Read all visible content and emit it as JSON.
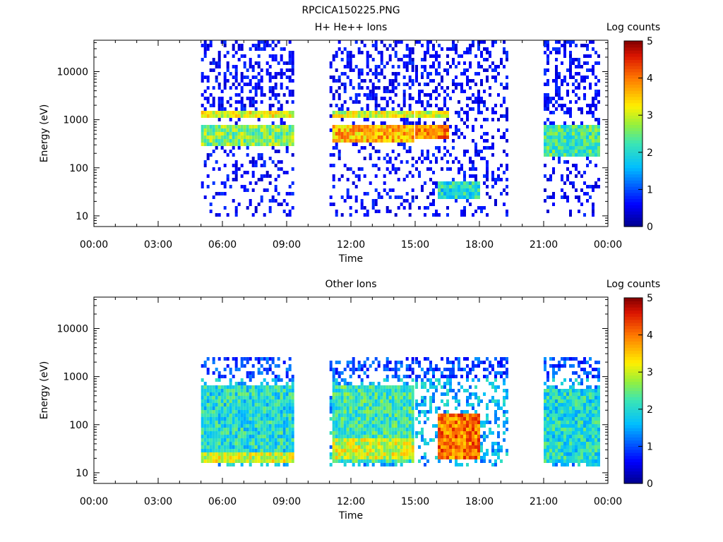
{
  "file_title": "RPCICA150225.PNG",
  "chart_data": [
    {
      "type": "heatmap",
      "title": "H+ He++ Ions",
      "xlabel": "Time",
      "ylabel": "Energy (eV)",
      "x_ticks": [
        "00:00",
        "03:00",
        "06:00",
        "09:00",
        "12:00",
        "15:00",
        "18:00",
        "21:00",
        "00:00"
      ],
      "xlim_hours": [
        0,
        24
      ],
      "y_scale": "log",
      "y_ticks": [
        "10",
        "100",
        "1000",
        "10000"
      ],
      "ylim": [
        6,
        45000
      ],
      "colorbar": {
        "label": "Log counts",
        "ticks": [
          "0",
          "1",
          "2",
          "3",
          "4",
          "5"
        ],
        "range": [
          0,
          5
        ],
        "colormap": "rainbow"
      },
      "data_intervals_hours": [
        [
          5.0,
          9.3
        ],
        [
          11.0,
          14.9
        ],
        [
          15.0,
          19.3
        ],
        [
          21.0,
          23.6
        ]
      ],
      "bands": [
        {
          "t_start": 5.0,
          "t_end": 9.3,
          "energy_low": 1100,
          "energy_high": 1600,
          "log_counts": 3.2
        },
        {
          "t_start": 5.0,
          "t_end": 9.3,
          "energy_low": 300,
          "energy_high": 800,
          "log_counts": 2.6
        },
        {
          "t_start": 11.0,
          "t_end": 14.9,
          "energy_low": 1100,
          "energy_high": 1600,
          "log_counts": 3.0
        },
        {
          "t_start": 11.0,
          "t_end": 14.9,
          "energy_low": 350,
          "energy_high": 900,
          "log_counts": 3.6
        },
        {
          "t_start": 15.0,
          "t_end": 16.5,
          "energy_low": 1100,
          "energy_high": 1600,
          "log_counts": 3.0
        },
        {
          "t_start": 15.0,
          "t_end": 16.5,
          "energy_low": 400,
          "energy_high": 900,
          "log_counts": 4.0
        },
        {
          "t_start": 16.0,
          "t_end": 18.0,
          "energy_low": 25,
          "energy_high": 60,
          "log_counts": 2.0
        },
        {
          "t_start": 21.0,
          "t_end": 23.6,
          "energy_low": 180,
          "energy_high": 800,
          "log_counts": 2.3
        }
      ]
    },
    {
      "type": "heatmap",
      "title": "Other Ions",
      "xlabel": "Time",
      "ylabel": "Energy (eV)",
      "x_ticks": [
        "00:00",
        "03:00",
        "06:00",
        "09:00",
        "12:00",
        "15:00",
        "18:00",
        "21:00",
        "00:00"
      ],
      "xlim_hours": [
        0,
        24
      ],
      "y_scale": "log",
      "y_ticks": [
        "10",
        "100",
        "1000",
        "10000"
      ],
      "ylim": [
        6,
        45000
      ],
      "colorbar": {
        "label": "Log counts",
        "ticks": [
          "0",
          "1",
          "2",
          "3",
          "4",
          "5"
        ],
        "range": [
          0,
          5
        ],
        "colormap": "rainbow"
      },
      "data_intervals_hours": [
        [
          5.0,
          9.3
        ],
        [
          11.0,
          14.9
        ],
        [
          15.0,
          19.3
        ],
        [
          21.0,
          23.6
        ]
      ],
      "bands": [
        {
          "t_start": 5.0,
          "t_end": 9.3,
          "energy_low": 16,
          "energy_high": 700,
          "log_counts": 2.0
        },
        {
          "t_start": 5.0,
          "t_end": 9.3,
          "energy_low": 18,
          "energy_high": 30,
          "log_counts": 3.0
        },
        {
          "t_start": 11.0,
          "t_end": 14.9,
          "energy_low": 16,
          "energy_high": 700,
          "log_counts": 2.2
        },
        {
          "t_start": 11.0,
          "t_end": 14.9,
          "energy_low": 20,
          "energy_high": 60,
          "log_counts": 3.0
        },
        {
          "t_start": 16.0,
          "t_end": 18.0,
          "energy_low": 20,
          "energy_high": 200,
          "log_counts": 4.0
        },
        {
          "t_start": 21.0,
          "t_end": 23.6,
          "energy_low": 16,
          "energy_high": 600,
          "log_counts": 2.0
        }
      ]
    }
  ]
}
